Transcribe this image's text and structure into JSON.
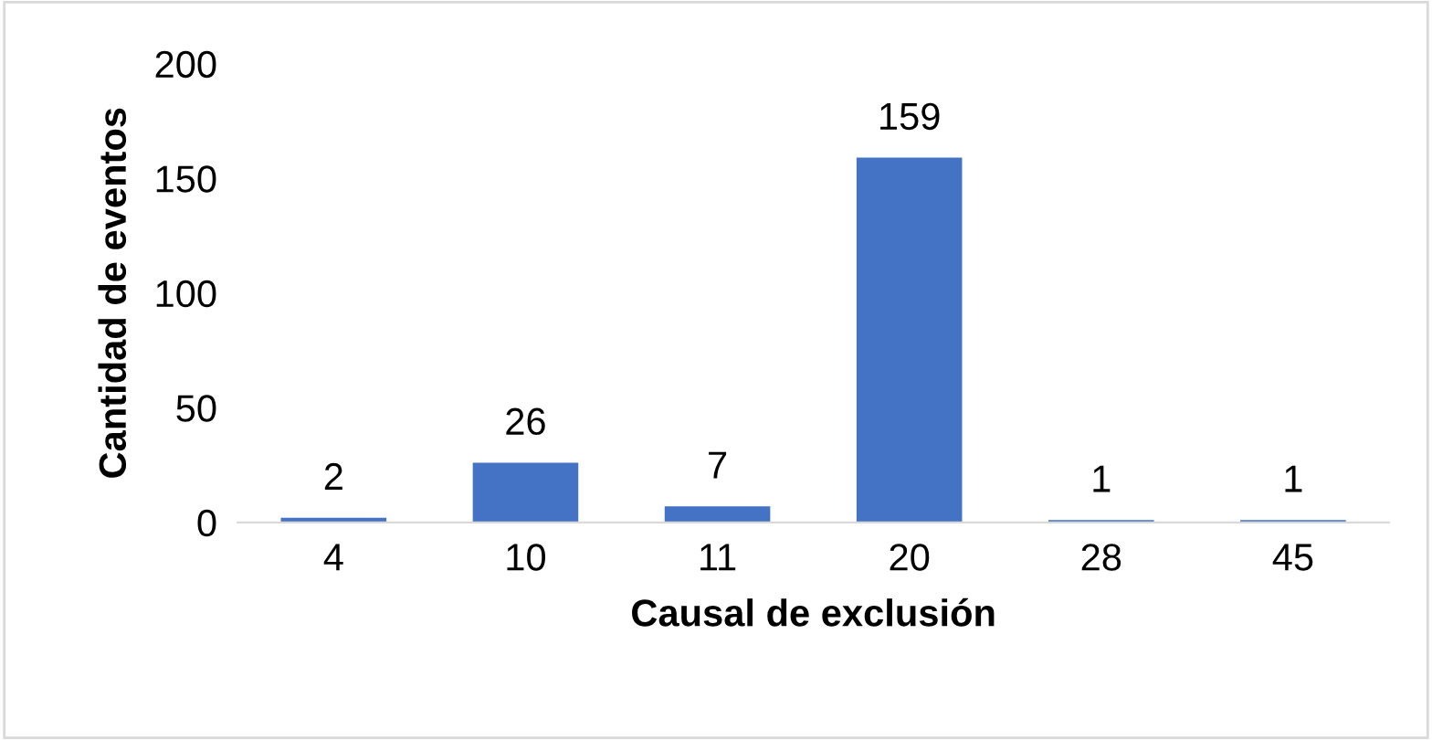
{
  "chart_data": {
    "type": "bar",
    "xlabel": "Causal de exclusión",
    "ylabel": "Cantidad de eventos",
    "categories": [
      "4",
      "10",
      "11",
      "20",
      "28",
      "45"
    ],
    "values": [
      2,
      26,
      7,
      159,
      1,
      1
    ],
    "color": "#4472c4",
    "ylim": [
      0,
      200
    ],
    "yticks": [
      0,
      50,
      100,
      150,
      200
    ],
    "data_labels": true,
    "grid": false,
    "legend": false
  }
}
